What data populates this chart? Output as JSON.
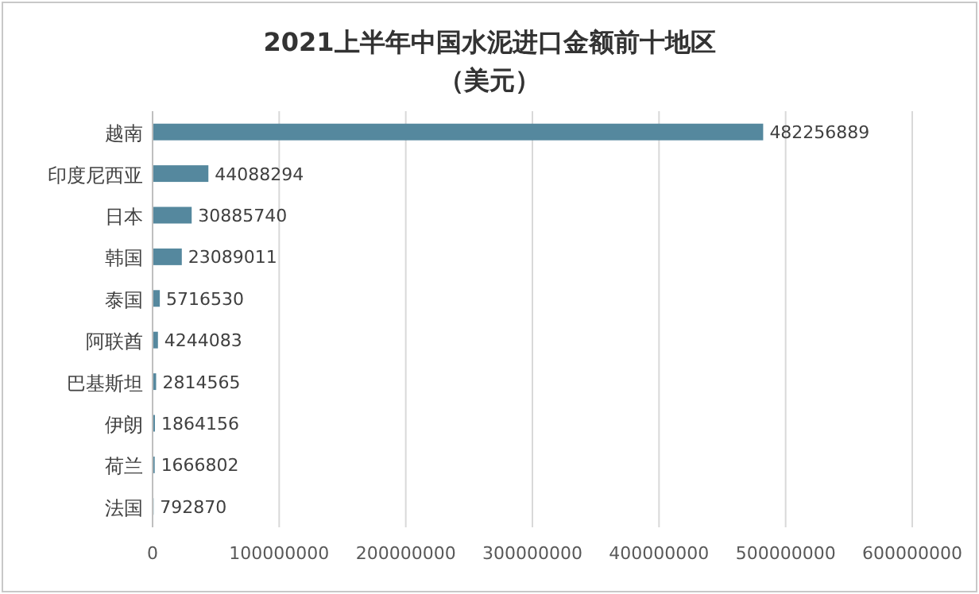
{
  "chart_data": {
    "type": "bar",
    "orientation": "horizontal",
    "title": "2021上半年中国水泥进口金额前十地区",
    "subtitle": "（美元）",
    "categories": [
      "越南",
      "印度尼西亚",
      "日本",
      "韩国",
      "泰国",
      "阿联酋",
      "巴基斯坦",
      "伊朗",
      "荷兰",
      "法国"
    ],
    "values": [
      482256889,
      44088294,
      30885740,
      23089011,
      5716530,
      4244083,
      2814565,
      1864156,
      1666802,
      792870
    ],
    "color": "#55889e",
    "xlim": [
      0,
      600000000
    ],
    "xticks": [
      0,
      100000000,
      200000000,
      300000000,
      400000000,
      500000000,
      600000000
    ],
    "grid": "x",
    "data_labels": true
  }
}
